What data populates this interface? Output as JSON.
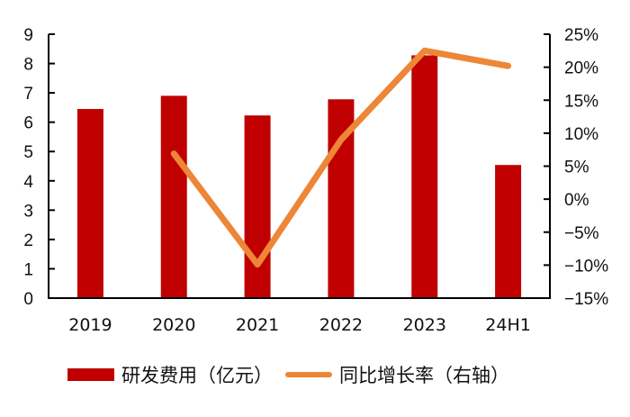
{
  "chart_data": {
    "type": "bar+line",
    "title": "",
    "categories": [
      "2019",
      "2020",
      "2021",
      "2022",
      "2023",
      "24H1"
    ],
    "series": [
      {
        "name": "研发费用（亿元）",
        "type": "bar",
        "axis": "left",
        "color": "#C00000",
        "values": [
          6.45,
          6.9,
          6.23,
          6.78,
          8.28,
          4.54
        ]
      },
      {
        "name": "同比增长率（右轴）",
        "type": "line",
        "axis": "right",
        "color": "#ED8636",
        "values": [
          null,
          6.9,
          -9.9,
          9.0,
          22.5,
          20.2
        ],
        "unit": "%"
      }
    ],
    "left_axis": {
      "ylim": [
        0,
        9
      ],
      "ticks": [
        "0",
        "1",
        "2",
        "3",
        "4",
        "5",
        "6",
        "7",
        "8",
        "9"
      ]
    },
    "right_axis": {
      "ylim": [
        -15,
        25
      ],
      "ticks": [
        "−15%",
        "−10%",
        "−5%",
        "0%",
        "5%",
        "10%",
        "15%",
        "20%",
        "25%"
      ]
    },
    "xlabel": "",
    "ylabel": "",
    "grid": false,
    "legend_position": "bottom"
  },
  "legend": {
    "bar_label": "研发费用（亿元）",
    "line_label": "同比增长率（右轴）"
  }
}
